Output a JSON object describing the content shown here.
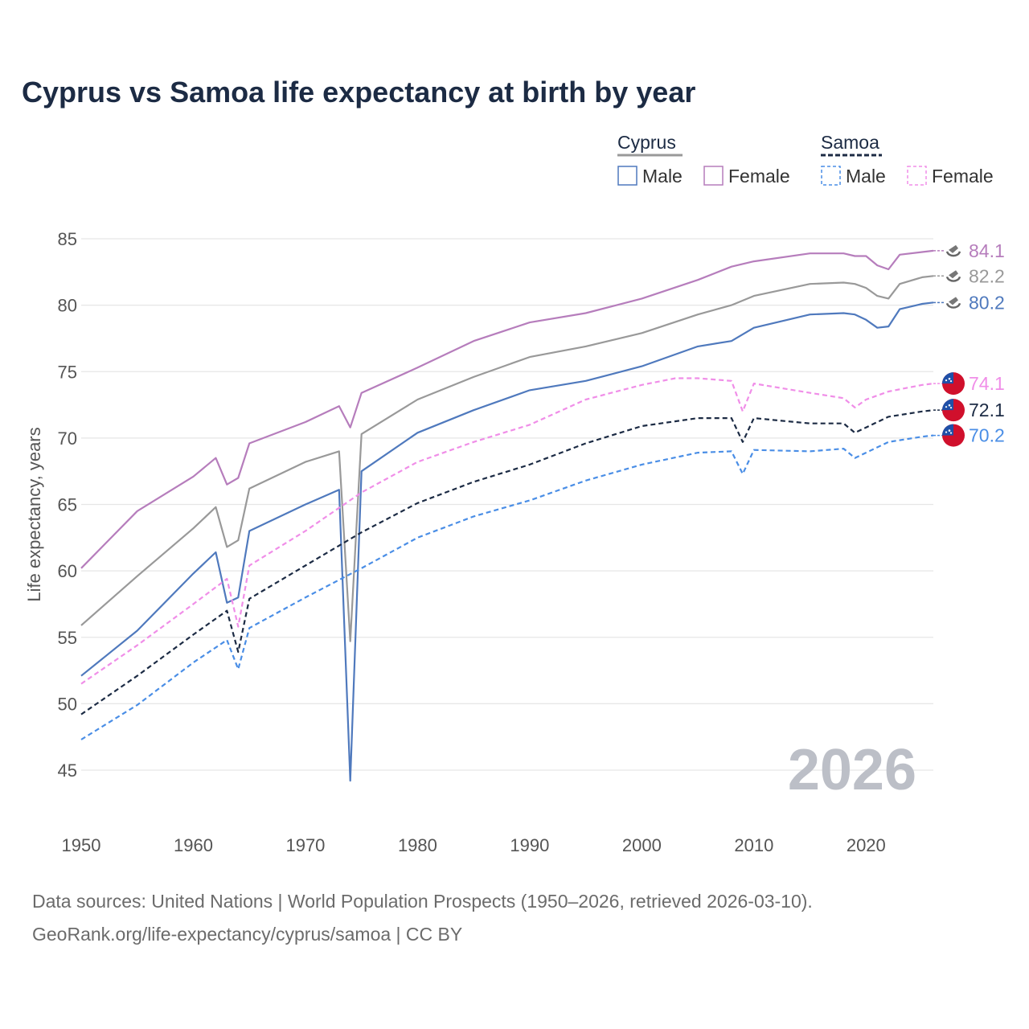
{
  "title": "Cyprus vs Samoa life expectancy at birth by year",
  "legend": {
    "groups": [
      {
        "name": "Cyprus",
        "color": "#999999",
        "dash": false,
        "items": [
          {
            "label": "Male",
            "color": "#4f79bd"
          },
          {
            "label": "Female",
            "color": "#b67dbc"
          }
        ]
      },
      {
        "name": "Samoa",
        "color": "#1c2b44",
        "dash": true,
        "items": [
          {
            "label": "Male",
            "color": "#4a8ee6"
          },
          {
            "label": "Female",
            "color": "#f08ee8"
          }
        ]
      }
    ]
  },
  "year_label": "2026",
  "sources": {
    "line1": "Data sources: United Nations | World Population Prospects (1950–2026, retrieved 2026-03-10).",
    "line2": "GeoRank.org/life-expectancy/cyprus/samoa | CC BY"
  },
  "chart_data": {
    "type": "line",
    "title": "Cyprus vs Samoa life expectancy at birth by year",
    "xlabel": "",
    "ylabel": "Life expectancy, years",
    "xlim": [
      1950,
      2026
    ],
    "ylim": [
      42,
      87
    ],
    "x_ticks": [
      1950,
      1960,
      1970,
      1980,
      1990,
      2000,
      2010,
      2020
    ],
    "y_ticks": [
      45,
      50,
      55,
      60,
      65,
      70,
      75,
      80,
      85
    ],
    "grid": true,
    "legend_position": "top-right",
    "series": [
      {
        "name": "Cyprus Male",
        "country": "Cyprus",
        "color": "#4f79bd",
        "dash": false,
        "end_label": "80.2",
        "points": [
          [
            1950,
            52.1
          ],
          [
            1955,
            55.5
          ],
          [
            1960,
            59.8
          ],
          [
            1962,
            61.4
          ],
          [
            1963,
            57.6
          ],
          [
            1964,
            58.0
          ],
          [
            1965,
            63.0
          ],
          [
            1970,
            65.0
          ],
          [
            1973,
            66.1
          ],
          [
            1974,
            44.2
          ],
          [
            1975,
            67.5
          ],
          [
            1980,
            70.4
          ],
          [
            1985,
            72.1
          ],
          [
            1990,
            73.6
          ],
          [
            1995,
            74.3
          ],
          [
            2000,
            75.4
          ],
          [
            2005,
            76.9
          ],
          [
            2008,
            77.3
          ],
          [
            2010,
            78.3
          ],
          [
            2015,
            79.3
          ],
          [
            2018,
            79.4
          ],
          [
            2019,
            79.3
          ],
          [
            2020,
            78.9
          ],
          [
            2021,
            78.3
          ],
          [
            2022,
            78.4
          ],
          [
            2023,
            79.7
          ],
          [
            2025,
            80.1
          ],
          [
            2026,
            80.2
          ]
        ]
      },
      {
        "name": "Cyprus Both",
        "country": "Cyprus",
        "color": "#999999",
        "dash": false,
        "end_label": "82.2",
        "points": [
          [
            1950,
            55.9
          ],
          [
            1955,
            59.6
          ],
          [
            1960,
            63.2
          ],
          [
            1962,
            64.8
          ],
          [
            1963,
            61.8
          ],
          [
            1964,
            62.3
          ],
          [
            1965,
            66.2
          ],
          [
            1970,
            68.2
          ],
          [
            1973,
            69.0
          ],
          [
            1974,
            54.7
          ],
          [
            1975,
            70.3
          ],
          [
            1980,
            72.9
          ],
          [
            1985,
            74.6
          ],
          [
            1990,
            76.1
          ],
          [
            1995,
            76.9
          ],
          [
            2000,
            77.9
          ],
          [
            2005,
            79.3
          ],
          [
            2008,
            80.0
          ],
          [
            2010,
            80.7
          ],
          [
            2015,
            81.6
          ],
          [
            2018,
            81.7
          ],
          [
            2019,
            81.6
          ],
          [
            2020,
            81.3
          ],
          [
            2021,
            80.7
          ],
          [
            2022,
            80.5
          ],
          [
            2023,
            81.6
          ],
          [
            2025,
            82.1
          ],
          [
            2026,
            82.2
          ]
        ]
      },
      {
        "name": "Cyprus Female",
        "country": "Cyprus",
        "color": "#b67dbc",
        "dash": false,
        "end_label": "84.1",
        "points": [
          [
            1950,
            60.2
          ],
          [
            1955,
            64.5
          ],
          [
            1960,
            67.1
          ],
          [
            1962,
            68.5
          ],
          [
            1963,
            66.5
          ],
          [
            1964,
            67.0
          ],
          [
            1965,
            69.6
          ],
          [
            1970,
            71.2
          ],
          [
            1973,
            72.4
          ],
          [
            1974,
            70.8
          ],
          [
            1975,
            73.4
          ],
          [
            1980,
            75.3
          ],
          [
            1985,
            77.3
          ],
          [
            1990,
            78.7
          ],
          [
            1995,
            79.4
          ],
          [
            2000,
            80.5
          ],
          [
            2005,
            81.9
          ],
          [
            2008,
            82.9
          ],
          [
            2010,
            83.3
          ],
          [
            2015,
            83.9
          ],
          [
            2018,
            83.9
          ],
          [
            2019,
            83.7
          ],
          [
            2020,
            83.7
          ],
          [
            2021,
            83.0
          ],
          [
            2022,
            82.7
          ],
          [
            2023,
            83.8
          ],
          [
            2025,
            84.0
          ],
          [
            2026,
            84.1
          ]
        ]
      },
      {
        "name": "Samoa Female",
        "country": "Samoa",
        "color": "#f08ee8",
        "dash": true,
        "end_label": "74.1",
        "points": [
          [
            1950,
            51.5
          ],
          [
            1955,
            54.4
          ],
          [
            1960,
            57.5
          ],
          [
            1963,
            59.4
          ],
          [
            1964,
            55.8
          ],
          [
            1965,
            60.4
          ],
          [
            1970,
            63.0
          ],
          [
            1975,
            65.9
          ],
          [
            1980,
            68.2
          ],
          [
            1985,
            69.7
          ],
          [
            1990,
            71.0
          ],
          [
            1995,
            72.9
          ],
          [
            2000,
            74.0
          ],
          [
            2003,
            74.5
          ],
          [
            2005,
            74.5
          ],
          [
            2008,
            74.3
          ],
          [
            2009,
            72.0
          ],
          [
            2010,
            74.1
          ],
          [
            2015,
            73.4
          ],
          [
            2018,
            73.0
          ],
          [
            2019,
            72.3
          ],
          [
            2020,
            72.9
          ],
          [
            2022,
            73.5
          ],
          [
            2025,
            74.0
          ],
          [
            2026,
            74.1
          ]
        ]
      },
      {
        "name": "Samoa Both",
        "country": "Samoa",
        "color": "#1c2b44",
        "dash": true,
        "end_label": "72.1",
        "points": [
          [
            1950,
            49.2
          ],
          [
            1955,
            52.1
          ],
          [
            1960,
            55.2
          ],
          [
            1963,
            57.0
          ],
          [
            1964,
            53.9
          ],
          [
            1965,
            57.9
          ],
          [
            1970,
            60.4
          ],
          [
            1975,
            62.9
          ],
          [
            1980,
            65.1
          ],
          [
            1985,
            66.7
          ],
          [
            1990,
            68.0
          ],
          [
            1995,
            69.6
          ],
          [
            2000,
            70.9
          ],
          [
            2005,
            71.5
          ],
          [
            2008,
            71.5
          ],
          [
            2009,
            69.7
          ],
          [
            2010,
            71.5
          ],
          [
            2015,
            71.1
          ],
          [
            2018,
            71.1
          ],
          [
            2019,
            70.4
          ],
          [
            2020,
            70.8
          ],
          [
            2022,
            71.6
          ],
          [
            2025,
            72.0
          ],
          [
            2026,
            72.1
          ]
        ]
      },
      {
        "name": "Samoa Male",
        "country": "Samoa",
        "color": "#4a8ee6",
        "dash": true,
        "end_label": "70.2",
        "points": [
          [
            1950,
            47.3
          ],
          [
            1955,
            49.9
          ],
          [
            1960,
            53.1
          ],
          [
            1963,
            54.8
          ],
          [
            1964,
            52.6
          ],
          [
            1965,
            55.7
          ],
          [
            1970,
            58.0
          ],
          [
            1975,
            60.2
          ],
          [
            1980,
            62.5
          ],
          [
            1985,
            64.1
          ],
          [
            1990,
            65.3
          ],
          [
            1995,
            66.8
          ],
          [
            2000,
            68.0
          ],
          [
            2005,
            68.9
          ],
          [
            2008,
            69.0
          ],
          [
            2009,
            67.3
          ],
          [
            2010,
            69.1
          ],
          [
            2015,
            69.0
          ],
          [
            2018,
            69.2
          ],
          [
            2019,
            68.5
          ],
          [
            2020,
            68.9
          ],
          [
            2022,
            69.7
          ],
          [
            2025,
            70.1
          ],
          [
            2026,
            70.2
          ]
        ]
      }
    ]
  }
}
